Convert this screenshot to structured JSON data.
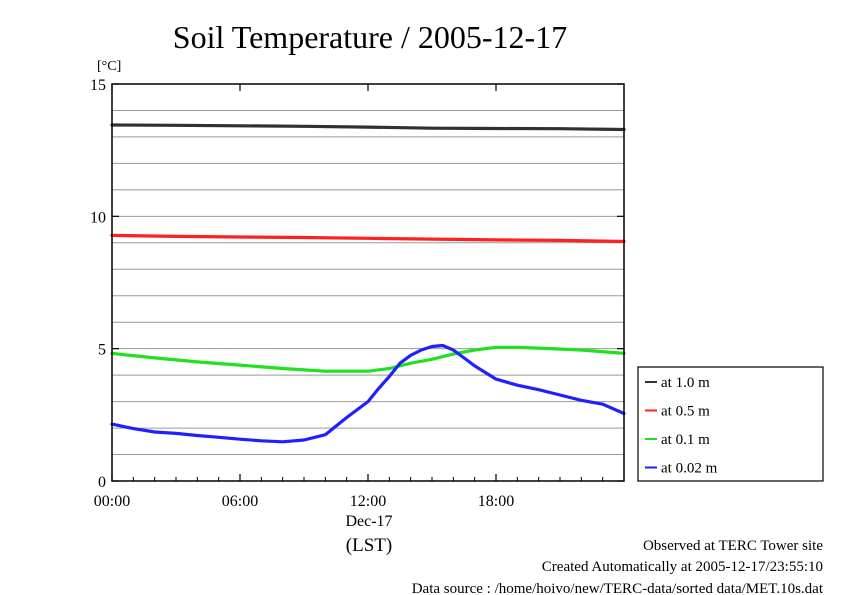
{
  "chart_data": {
    "type": "line",
    "title": "Soil Temperature / 2005-12-17",
    "ylabel": "[°C]",
    "xlabel": "(LST)",
    "date_label": "Dec-17",
    "ylim": [
      0,
      15
    ],
    "xlim_hours": [
      0,
      24
    ],
    "y_ticks": [
      0,
      5,
      10,
      15
    ],
    "y_tick_labels": [
      "0",
      "5",
      "10",
      "15"
    ],
    "y_gridlines": [
      1,
      2,
      3,
      4,
      5,
      6,
      7,
      8,
      9,
      10,
      11,
      12,
      13,
      14
    ],
    "x_ticks": [
      0,
      6,
      12,
      18
    ],
    "x_tick_labels": [
      "00:00",
      "06:00",
      "12:00",
      "18:00"
    ],
    "grid": true,
    "legend_position": "right",
    "series": [
      {
        "name": "at 1.0 m",
        "color": "#303030",
        "x": [
          0,
          3,
          6,
          9,
          12,
          15,
          18,
          21,
          24
        ],
        "y": [
          13.45,
          13.44,
          13.42,
          13.4,
          13.37,
          13.33,
          13.32,
          13.31,
          13.28
        ]
      },
      {
        "name": "at 0.5 m",
        "color": "#ff2020",
        "x": [
          0,
          3,
          6,
          9,
          12,
          15,
          18,
          21,
          24
        ],
        "y": [
          9.28,
          9.24,
          9.22,
          9.2,
          9.17,
          9.14,
          9.11,
          9.09,
          9.05
        ]
      },
      {
        "name": "at 0.1 m",
        "color": "#20e020",
        "x": [
          0,
          2,
          4,
          6,
          8,
          10,
          12,
          13,
          14,
          15,
          16,
          17,
          18,
          19,
          20,
          22,
          24
        ],
        "y": [
          4.82,
          4.65,
          4.5,
          4.38,
          4.25,
          4.15,
          4.15,
          4.25,
          4.45,
          4.6,
          4.8,
          4.95,
          5.05,
          5.05,
          5.02,
          4.95,
          4.82
        ]
      },
      {
        "name": "at 0.02 m",
        "color": "#2020ff",
        "x": [
          0,
          1,
          2,
          3,
          4,
          5,
          6,
          7,
          8,
          9,
          10,
          11,
          12,
          12.5,
          13,
          13.5,
          14,
          14.5,
          15,
          15.5,
          16,
          16.5,
          17,
          17.5,
          18,
          19,
          20,
          21,
          22,
          23,
          24
        ],
        "y": [
          2.15,
          1.98,
          1.85,
          1.8,
          1.72,
          1.65,
          1.58,
          1.52,
          1.48,
          1.55,
          1.75,
          2.4,
          3.0,
          3.5,
          3.95,
          4.45,
          4.75,
          4.95,
          5.08,
          5.12,
          4.95,
          4.65,
          4.35,
          4.1,
          3.85,
          3.62,
          3.45,
          3.25,
          3.05,
          2.9,
          2.55
        ]
      }
    ]
  },
  "footer": {
    "line1": "Observed at TERC Tower site",
    "line2": "Created Automatically at 2005-12-17/23:55:10",
    "line3": "Data source : /home/hoivo/new/TERC-data/sorted data/MET.10s.dat"
  }
}
